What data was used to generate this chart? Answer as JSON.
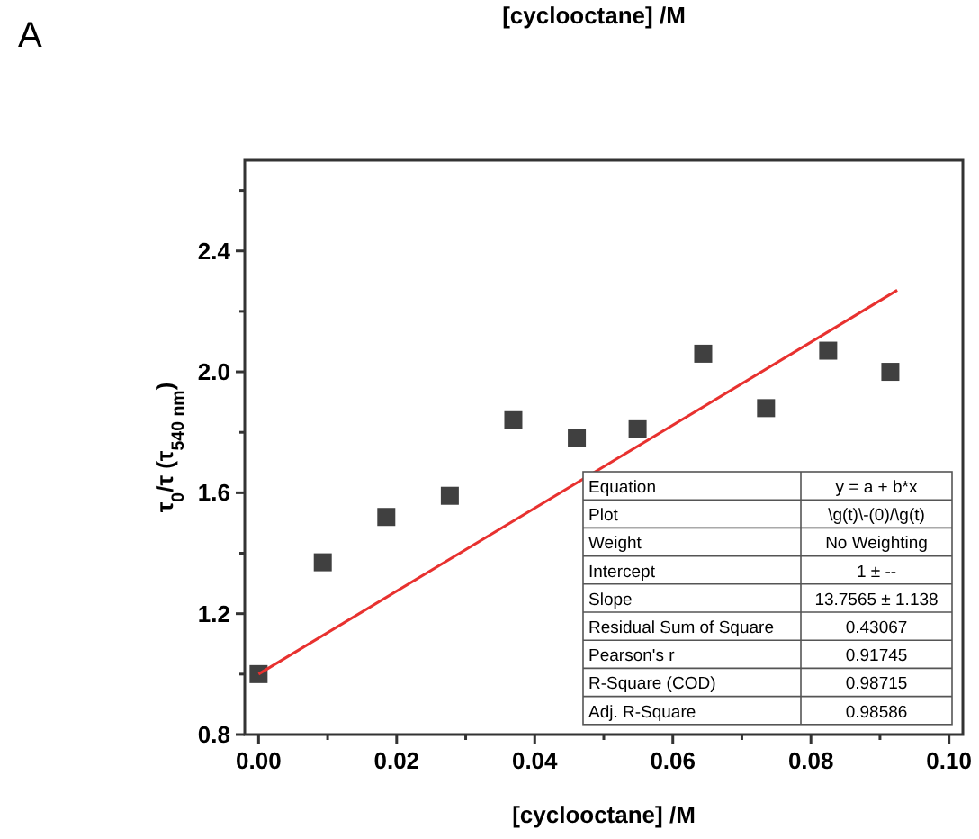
{
  "chart_data": {
    "type": "scatter",
    "xlabel": "[cyclooctane] /M",
    "ylabel": "τ$_{0}$/τ (τ$_{540 nm}$)",
    "xlim": [
      -0.002,
      0.102
    ],
    "ylim": [
      0.8,
      2.7
    ],
    "xticks": [
      {
        "value": 0,
        "label": "0.00"
      },
      {
        "value": 0.01,
        "label": null
      },
      {
        "value": 0.02,
        "label": "0.02"
      },
      {
        "value": 0.03,
        "label": null
      },
      {
        "value": 0.04,
        "label": "0.04"
      },
      {
        "value": 0.05,
        "label": null
      },
      {
        "value": 0.06,
        "label": "0.06"
      },
      {
        "value": 0.07,
        "label": null
      },
      {
        "value": 0.08,
        "label": "0.08"
      },
      {
        "value": 0.09,
        "label": null
      },
      {
        "value": 0.1,
        "label": "0.10"
      }
    ],
    "yticks": [
      0.8,
      {
        "value": 1.0,
        "label": null
      },
      1.2,
      {
        "value": 1.4,
        "label": null
      },
      1.6,
      {
        "value": 1.8,
        "label": null
      },
      {
        "value": 2.0,
        "label": "2.0"
      },
      {
        "value": 2.2,
        "label": null
      },
      2.4,
      {
        "value": 2.6,
        "label": null
      }
    ],
    "grid": false,
    "series": [
      {
        "type": "scatter",
        "marker": "square",
        "color": "#404040",
        "x": [
          0,
          0.0093,
          0.0185,
          0.0277,
          0.0369,
          0.0461,
          0.0549,
          0.0644,
          0.0735,
          0.0825,
          0.0915
        ],
        "values": [
          1.0,
          1.37,
          1.52,
          1.59,
          1.84,
          1.78,
          1.81,
          2.06,
          1.88,
          2.07,
          2.0
        ]
      },
      {
        "type": "line",
        "line_style": "solid",
        "color": "#e8312f",
        "x": [
          0,
          0.0925
        ],
        "values": [
          1.0,
          2.27
        ]
      }
    ],
    "annotations": [
      "A",
      "[cyclooctane] /M",
      "Equation",
      "y = a + b*x",
      "Plot",
      "\\g(t)\\-(0)/\\g(t)",
      "Weight",
      "No Weighting",
      "Intercept",
      "1 ± --",
      "Slope",
      "13.7565 ± 1.138",
      "Residual Sum of Square",
      "0.43067",
      "Pearson's r",
      "0.91745",
      "R-Square (COD)",
      "0.98715",
      "Adj. R-Square",
      "0.98586"
    ]
  }
}
